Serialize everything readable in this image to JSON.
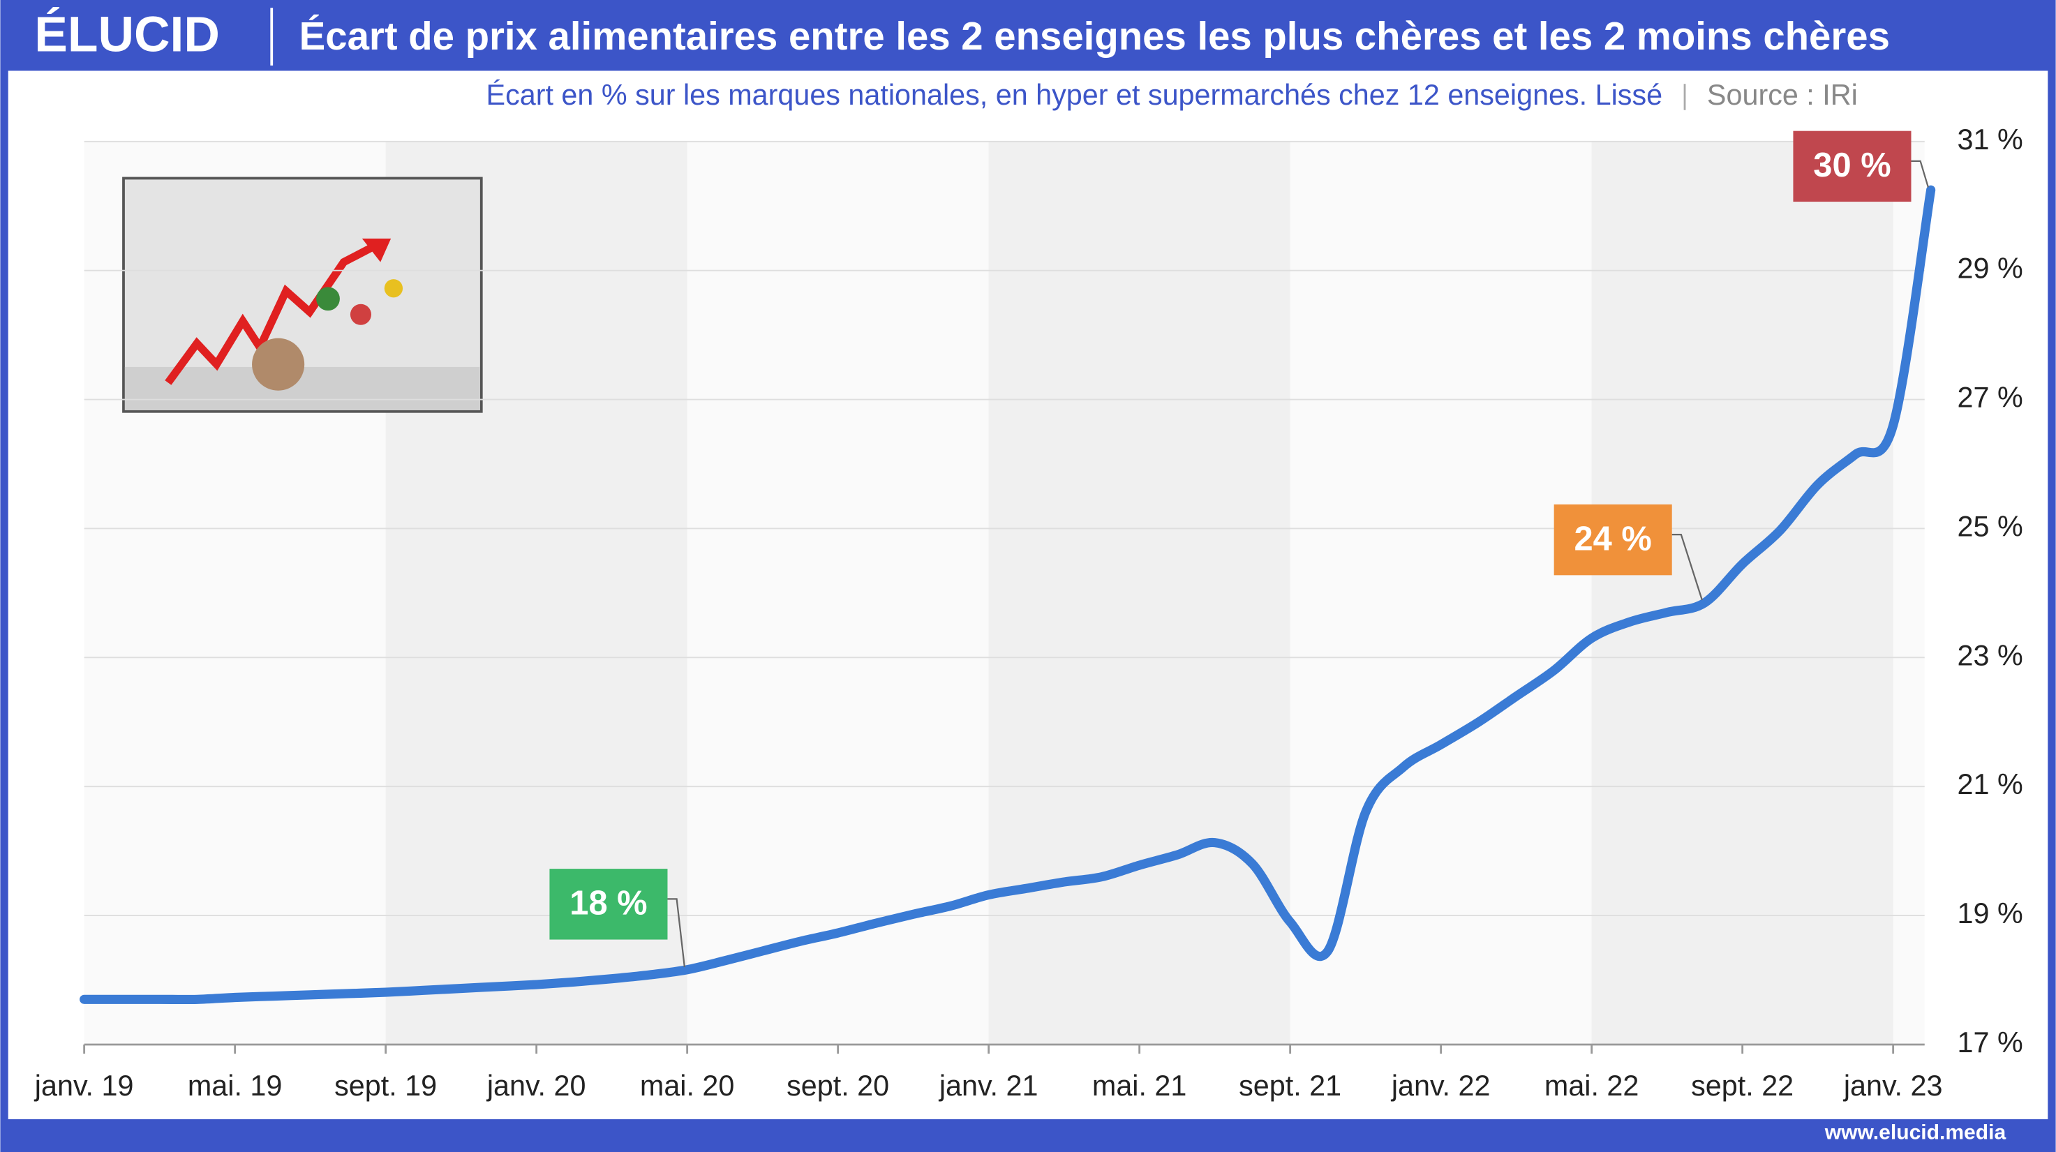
{
  "header": {
    "logo": "ÉLUCID",
    "footer": "www.elucid.media"
  },
  "chart_data": {
    "type": "line",
    "title": "Écart de prix alimentaires entre les 2 enseignes les plus chères et les 2 moins chères",
    "subtitle": "Écart en % sur les marques nationales, en hyper et supermarchés chez 12 enseignes. Lissé",
    "source": "Source : IRi",
    "categories": [
      "janv. 19",
      null,
      null,
      null,
      "mai. 19",
      null,
      null,
      null,
      "sept. 19",
      null,
      null,
      null,
      "janv. 20",
      null,
      null,
      null,
      "mai. 20",
      null,
      null,
      null,
      "sept. 20",
      null,
      null,
      null,
      "janv. 21",
      null,
      null,
      null,
      "mai. 21",
      null,
      null,
      null,
      "sept. 21",
      null,
      null,
      null,
      "janv. 22",
      null,
      null,
      null,
      "mai. 22",
      null,
      null,
      null,
      "sept. 22",
      null,
      null,
      null,
      "janv. 23",
      null
    ],
    "values": [
      17.7,
      17.7,
      17.7,
      17.7,
      17.73,
      17.75,
      17.77,
      17.79,
      17.81,
      17.84,
      17.87,
      17.9,
      17.93,
      17.97,
      18.02,
      18.08,
      18.16,
      18.3,
      18.45,
      18.6,
      18.73,
      18.88,
      19.02,
      19.15,
      19.32,
      19.42,
      19.52,
      19.6,
      19.78,
      19.94,
      20.13,
      19.8,
      18.9,
      18.45,
      20.6,
      21.3,
      21.65,
      22.0,
      22.4,
      22.8,
      23.3,
      23.55,
      23.7,
      23.85,
      24.45,
      24.97,
      25.68,
      26.15,
      26.6,
      30.25
    ],
    "color": "#3a7bd5",
    "ylim": [
      17,
      31
    ],
    "yticks": [
      {
        "value": 17,
        "label": "17 %"
      },
      {
        "value": 19,
        "label": "19 %"
      },
      {
        "value": 21,
        "label": "21 %"
      },
      {
        "value": 23,
        "label": "23 %"
      },
      {
        "value": 25,
        "label": "25 %"
      },
      {
        "value": 27,
        "label": "27 %"
      },
      {
        "value": 29,
        "label": "29 %"
      },
      {
        "value": 31,
        "label": "31 %"
      }
    ],
    "grid": true,
    "annotations": [
      {
        "index": 16,
        "text": "18 %",
        "color": "#3cb96a"
      },
      {
        "index": 43,
        "text": "24 %",
        "color": "#f0913a"
      },
      {
        "index": 49,
        "text": "30 %",
        "color": "#c0474e"
      }
    ]
  }
}
